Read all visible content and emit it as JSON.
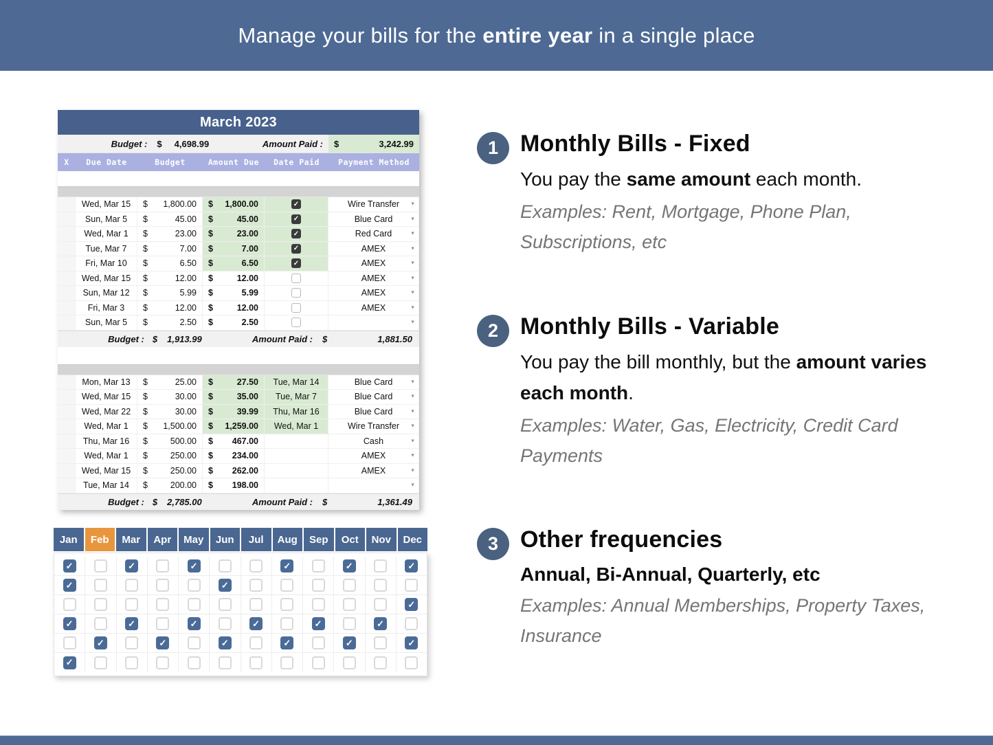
{
  "banner": {
    "segments": [
      {
        "text": "Manage your bills for the "
      },
      {
        "text": "entire year",
        "bold": true
      },
      {
        "text": " in a single place"
      }
    ]
  },
  "colors": {
    "banner_blue": "#4e6a94",
    "sheet_title_blue": "#47618c",
    "header_purple": "#aab0e0",
    "paid_green": "#d9ead3",
    "tab_blue": "#4a6791",
    "tab_active_orange": "#e8963d",
    "grid_check_blue": "#4b6b97",
    "table_check_dark": "#3b3b3b",
    "badge_blue": "#4a6180"
  },
  "spreadsheet": {
    "title": "March 2023",
    "top_summary": {
      "budget_label": "Budget :",
      "budget_currency": "$",
      "budget_value": "4,698.99",
      "paid_label": "Amount Paid :",
      "paid_currency": "$",
      "paid_value": "3,242.99"
    },
    "columns": [
      "X",
      "Due Date",
      "Budget",
      "Amount Due",
      "Date Paid",
      "Payment Method"
    ],
    "fixed_table": {
      "rows": [
        {
          "due_date": "Wed, Mar 15",
          "budget": "1,800.00",
          "amount_due": "1,800.00",
          "paid": true,
          "method": "Wire Transfer"
        },
        {
          "due_date": "Sun, Mar 5",
          "budget": "45.00",
          "amount_due": "45.00",
          "paid": true,
          "method": "Blue Card"
        },
        {
          "due_date": "Wed, Mar 1",
          "budget": "23.00",
          "amount_due": "23.00",
          "paid": true,
          "method": "Red Card"
        },
        {
          "due_date": "Tue, Mar 7",
          "budget": "7.00",
          "amount_due": "7.00",
          "paid": true,
          "method": "AMEX"
        },
        {
          "due_date": "Fri, Mar 10",
          "budget": "6.50",
          "amount_due": "6.50",
          "paid": true,
          "method": "AMEX"
        },
        {
          "due_date": "Wed, Mar 15",
          "budget": "12.00",
          "amount_due": "12.00",
          "paid": false,
          "method": "AMEX"
        },
        {
          "due_date": "Sun, Mar 12",
          "budget": "5.99",
          "amount_due": "5.99",
          "paid": false,
          "method": "AMEX"
        },
        {
          "due_date": "Fri, Mar 3",
          "budget": "12.00",
          "amount_due": "12.00",
          "paid": false,
          "method": "AMEX"
        },
        {
          "due_date": "Sun, Mar 5",
          "budget": "2.50",
          "amount_due": "2.50",
          "paid": false,
          "method": ""
        }
      ],
      "summary": {
        "budget_label": "Budget :",
        "budget_currency": "$",
        "budget_value": "1,913.99",
        "paid_label": "Amount Paid :",
        "paid_currency": "$",
        "paid_value": "1,881.50"
      }
    },
    "variable_table": {
      "rows": [
        {
          "due_date": "Mon, Mar 13",
          "budget": "25.00",
          "amount_due": "27.50",
          "date_paid": "Tue, Mar 14",
          "method": "Blue Card"
        },
        {
          "due_date": "Wed, Mar 15",
          "budget": "30.00",
          "amount_due": "35.00",
          "date_paid": "Tue, Mar 7",
          "method": "Blue Card"
        },
        {
          "due_date": "Wed, Mar 22",
          "budget": "30.00",
          "amount_due": "39.99",
          "date_paid": "Thu, Mar 16",
          "method": "Blue Card"
        },
        {
          "due_date": "Wed, Mar 1",
          "budget": "1,500.00",
          "amount_due": "1,259.00",
          "date_paid": "Wed, Mar 1",
          "method": "Wire Transfer"
        },
        {
          "due_date": "Thu, Mar 16",
          "budget": "500.00",
          "amount_due": "467.00",
          "date_paid": "",
          "method": "Cash"
        },
        {
          "due_date": "Wed, Mar 1",
          "budget": "250.00",
          "amount_due": "234.00",
          "date_paid": "",
          "method": "AMEX"
        },
        {
          "due_date": "Wed, Mar 15",
          "budget": "250.00",
          "amount_due": "262.00",
          "date_paid": "",
          "method": "AMEX"
        },
        {
          "due_date": "Tue, Mar 14",
          "budget": "200.00",
          "amount_due": "198.00",
          "date_paid": "",
          "method": ""
        }
      ],
      "summary": {
        "budget_label": "Budget :",
        "budget_currency": "$",
        "budget_value": "2,785.00",
        "paid_label": "Amount Paid :",
        "paid_currency": "$",
        "paid_value": "1,361.49"
      }
    },
    "currency_symbol": "$"
  },
  "month_tabs": {
    "months": [
      "Jan",
      "Feb",
      "Mar",
      "Apr",
      "May",
      "Jun",
      "Jul",
      "Aug",
      "Sep",
      "Oct",
      "Nov",
      "Dec"
    ],
    "active": "Feb"
  },
  "checkbox_grid": {
    "rows": [
      [
        1,
        0,
        1,
        0,
        1,
        0,
        0,
        1,
        0,
        1,
        0,
        1
      ],
      [
        1,
        0,
        0,
        0,
        0,
        1,
        0,
        0,
        0,
        0,
        0,
        0
      ],
      [
        0,
        0,
        0,
        0,
        0,
        0,
        0,
        0,
        0,
        0,
        0,
        1
      ],
      [
        1,
        0,
        1,
        0,
        1,
        0,
        1,
        0,
        1,
        0,
        1,
        0
      ],
      [
        0,
        1,
        0,
        1,
        0,
        1,
        0,
        1,
        0,
        1,
        0,
        1
      ],
      [
        1,
        0,
        0,
        0,
        0,
        0,
        0,
        0,
        0,
        0,
        0,
        0
      ]
    ]
  },
  "sections": [
    {
      "number": "1",
      "title": "Monthly Bills - Fixed",
      "body": [
        {
          "text": "You pay the "
        },
        {
          "text": "same amount",
          "bold": true
        },
        {
          "text": " each month."
        }
      ],
      "bold_line": "",
      "examples": "Examples: Rent, Mortgage, Phone Plan, Subscriptions, etc"
    },
    {
      "number": "2",
      "title": "Monthly Bills - Variable",
      "body": [
        {
          "text": "You pay the bill monthly, but the "
        },
        {
          "text": "amount varies each month",
          "bold": true
        },
        {
          "text": "."
        }
      ],
      "bold_line": "",
      "examples": "Examples: Water, Gas, Electricity, Credit Card Payments"
    },
    {
      "number": "3",
      "title": "Other frequencies",
      "body": [],
      "bold_line": "Annual, Bi-Annual, Quarterly, etc",
      "examples": "Examples: Annual Memberships, Property Taxes, Insurance"
    }
  ],
  "icons": {
    "checkmark": "✓",
    "dropdown_arrow": "▼"
  }
}
